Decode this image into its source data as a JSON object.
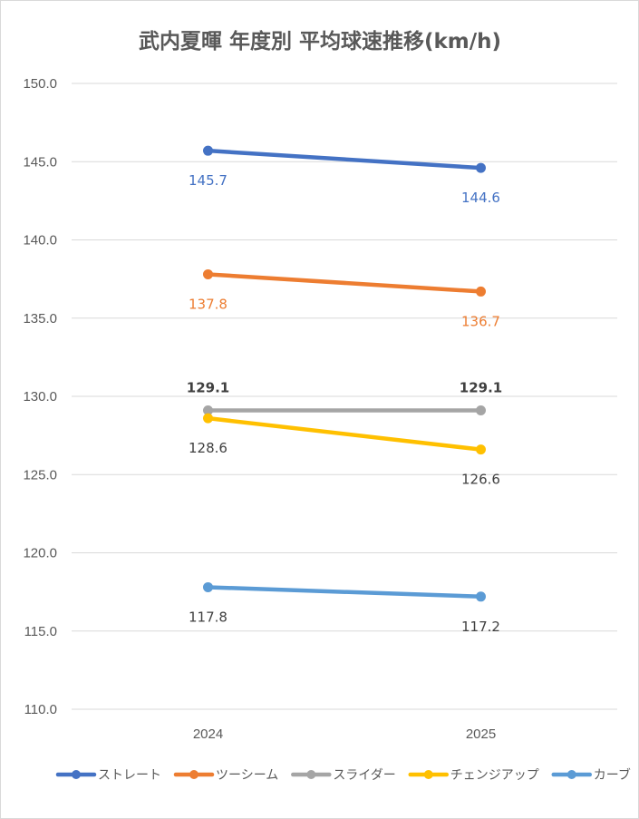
{
  "chart_data": {
    "type": "line",
    "title": "武内夏暉 年度別 平均球速推移(km/h)",
    "categories": [
      "2024",
      "2025"
    ],
    "ylim": [
      110,
      150
    ],
    "ytick_step": 5,
    "ytick_labels": [
      "110.0",
      "115.0",
      "120.0",
      "125.0",
      "130.0",
      "135.0",
      "140.0",
      "145.0",
      "150.0"
    ],
    "grid": true,
    "legend_position": "bottom",
    "series": [
      {
        "name": "ストレート",
        "values": [
          145.7,
          144.6
        ],
        "labels": [
          "145.7",
          "144.6"
        ],
        "color": "#4472C4",
        "label_pos": [
          "below",
          "below"
        ],
        "label_bold": false,
        "label_color": "#4472C4"
      },
      {
        "name": "ツーシーム",
        "values": [
          137.8,
          136.7
        ],
        "labels": [
          "137.8",
          "136.7"
        ],
        "color": "#ED7D31",
        "label_pos": [
          "below",
          "below"
        ],
        "label_bold": false,
        "label_color": "#ED7D31"
      },
      {
        "name": "スライダー",
        "values": [
          129.1,
          129.1
        ],
        "labels": [
          "129.1",
          "129.1"
        ],
        "color": "#A5A5A5",
        "label_pos": [
          "above",
          "above"
        ],
        "label_bold": true,
        "label_color": "#404040"
      },
      {
        "name": "チェンジアップ",
        "values": [
          128.6,
          126.6
        ],
        "labels": [
          "128.6",
          "126.6"
        ],
        "color": "#FFC000",
        "label_pos": [
          "below",
          "below"
        ],
        "label_bold": false,
        "label_color": "#404040"
      },
      {
        "name": "カーブ",
        "values": [
          117.8,
          117.2
        ],
        "labels": [
          "117.8",
          "117.2"
        ],
        "color": "#5B9BD5",
        "label_pos": [
          "below",
          "below"
        ],
        "label_bold": false,
        "label_color": "#404040"
      }
    ]
  }
}
